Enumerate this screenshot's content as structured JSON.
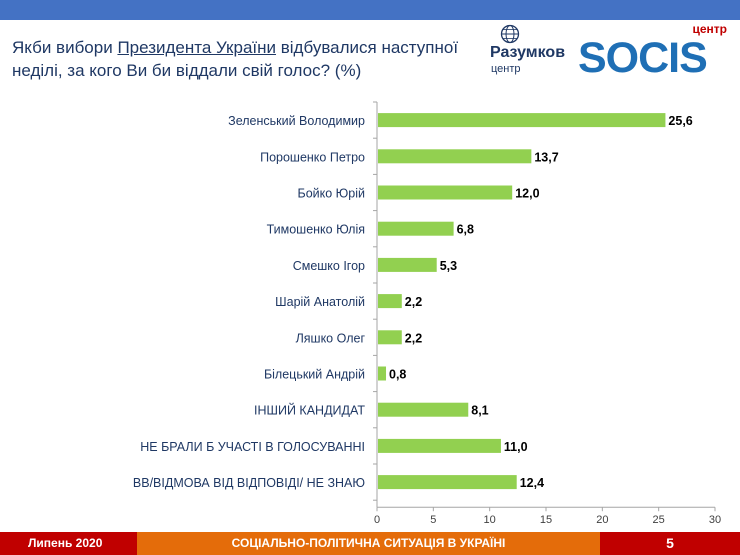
{
  "header": {
    "title_part1": "Якби вибори ",
    "title_link": "Президента України",
    "title_part2": " відбувалися наступної неділі, за кого Ви би віддали свій голос? (%)"
  },
  "logos": {
    "razumkov_name": "Разумков",
    "razumkov_sub": "центр",
    "socis_top": "центр",
    "socis_name": "SOCIS"
  },
  "footer": {
    "date": "Липень 2020",
    "subtitle": "СОЦІАЛЬНО-ПОЛІТИЧНА СИТУАЦІЯ В УКРАЇНІ",
    "page": "5"
  },
  "colors": {
    "bar": "#92d050",
    "title": "#1f3864",
    "topbar": "#4472c4",
    "footer_red": "#c00000",
    "footer_orange": "#e46c0a"
  },
  "chart_data": {
    "type": "bar",
    "orientation": "horizontal",
    "categories": [
      "Зеленський Володимир",
      "Порошенко Петро",
      "Бойко Юрій",
      "Тимошенко Юлія",
      "Смешко Ігор",
      "Шарій Анатолій",
      "Ляшко Олег",
      "Білецький Андрій",
      "ІНШИЙ КАНДИДАТ",
      "НЕ БРАЛИ Б УЧАСТІ В ГОЛОСУВАННІ",
      "ВВ/ВІДМОВА ВІД ВІДПОВІДІ/ НЕ ЗНАЮ"
    ],
    "values": [
      25.6,
      13.7,
      12.0,
      6.8,
      5.3,
      2.2,
      2.2,
      0.8,
      8.1,
      11.0,
      12.4
    ],
    "value_labels": [
      "25,6",
      "13,7",
      "12,0",
      "6,8",
      "5,3",
      "2,2",
      "2,2",
      "0,8",
      "8,1",
      "11,0",
      "12,4"
    ],
    "xlim": [
      0,
      30
    ],
    "xticks": [
      "0",
      "5",
      "10",
      "15",
      "20",
      "25",
      "30"
    ],
    "grid": false,
    "legend": "none"
  }
}
